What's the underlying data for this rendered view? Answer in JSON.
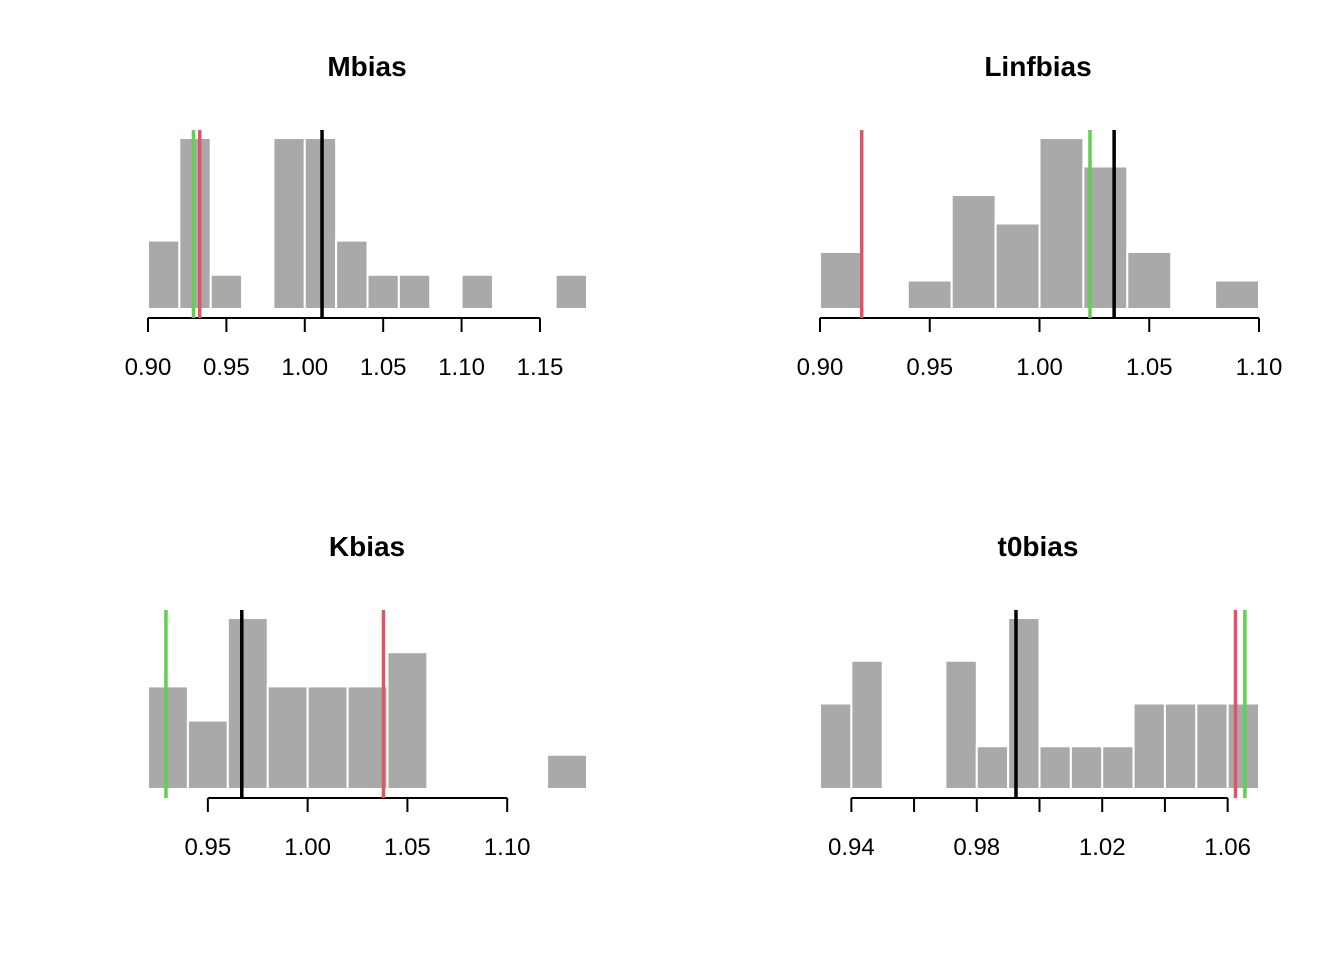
{
  "colors": {
    "bar": "#a9a9a9",
    "black_line": "#000000",
    "red_line": "#df536b",
    "green_line": "#61d04f"
  },
  "chart_data": [
    {
      "type": "bar",
      "title": "Mbias",
      "xlim": [
        0.9,
        1.18
      ],
      "ticks": [
        0.9,
        0.95,
        1.0,
        1.05,
        1.1,
        1.15
      ],
      "tick_labels": [
        "0.90",
        "0.95",
        "1.00",
        "1.05",
        "1.10",
        "1.15"
      ],
      "bin_width": 0.02,
      "bins": [
        {
          "start": 0.9,
          "count": 2
        },
        {
          "start": 0.92,
          "count": 5
        },
        {
          "start": 0.94,
          "count": 1
        },
        {
          "start": 0.98,
          "count": 5
        },
        {
          "start": 1.0,
          "count": 5
        },
        {
          "start": 1.02,
          "count": 2
        },
        {
          "start": 1.04,
          "count": 1
        },
        {
          "start": 1.06,
          "count": 1
        },
        {
          "start": 1.1,
          "count": 1
        },
        {
          "start": 1.16,
          "count": 1
        }
      ],
      "ymax": 5,
      "vlines": [
        {
          "color": "green",
          "x": 0.929
        },
        {
          "color": "red",
          "x": 0.933
        },
        {
          "color": "black",
          "x": 1.011
        }
      ]
    },
    {
      "type": "bar",
      "title": "Linfbias",
      "xlim": [
        0.9,
        1.1
      ],
      "ticks": [
        0.9,
        0.95,
        1.0,
        1.05,
        1.1
      ],
      "tick_labels": [
        "0.90",
        "0.95",
        "1.00",
        "1.05",
        "1.10"
      ],
      "bin_width": 0.02,
      "bins": [
        {
          "start": 0.9,
          "count": 2
        },
        {
          "start": 0.94,
          "count": 1
        },
        {
          "start": 0.96,
          "count": 4
        },
        {
          "start": 0.98,
          "count": 3
        },
        {
          "start": 1.0,
          "count": 6
        },
        {
          "start": 1.02,
          "count": 5
        },
        {
          "start": 1.04,
          "count": 2
        },
        {
          "start": 1.08,
          "count": 1
        }
      ],
      "ymax": 6,
      "vlines": [
        {
          "color": "red",
          "x": 0.919
        },
        {
          "color": "green",
          "x": 1.023
        },
        {
          "color": "black",
          "x": 1.034
        }
      ]
    },
    {
      "type": "bar",
      "title": "Kbias",
      "xlim": [
        0.92,
        1.14
      ],
      "ticks": [
        0.95,
        1.0,
        1.05,
        1.1
      ],
      "tick_labels": [
        "0.95",
        "1.00",
        "1.05",
        "1.10"
      ],
      "bin_width": 0.02,
      "bins": [
        {
          "start": 0.92,
          "count": 3
        },
        {
          "start": 0.94,
          "count": 2
        },
        {
          "start": 0.96,
          "count": 5
        },
        {
          "start": 0.98,
          "count": 3
        },
        {
          "start": 1.0,
          "count": 3
        },
        {
          "start": 1.02,
          "count": 3
        },
        {
          "start": 1.04,
          "count": 4
        },
        {
          "start": 1.12,
          "count": 1
        }
      ],
      "ymax": 5,
      "vlines": [
        {
          "color": "green",
          "x": 0.929
        },
        {
          "color": "black",
          "x": 0.967
        },
        {
          "color": "red",
          "x": 1.038
        }
      ]
    },
    {
      "type": "bar",
      "title": "t0bias",
      "xlim": [
        0.93,
        1.07
      ],
      "ticks": [
        0.94,
        0.96,
        0.98,
        1.0,
        1.02,
        1.04,
        1.06
      ],
      "tick_labels": [
        "0.94",
        "",
        "0.98",
        "",
        "1.02",
        "",
        "1.06"
      ],
      "bin_width": 0.01,
      "bins": [
        {
          "start": 0.93,
          "count": 2
        },
        {
          "start": 0.94,
          "count": 3
        },
        {
          "start": 0.97,
          "count": 3
        },
        {
          "start": 0.98,
          "count": 1
        },
        {
          "start": 0.99,
          "count": 4
        },
        {
          "start": 1.0,
          "count": 1
        },
        {
          "start": 1.01,
          "count": 1
        },
        {
          "start": 1.02,
          "count": 1
        },
        {
          "start": 1.03,
          "count": 2
        },
        {
          "start": 1.04,
          "count": 2
        },
        {
          "start": 1.05,
          "count": 2
        },
        {
          "start": 1.06,
          "count": 2
        }
      ],
      "ymax": 4,
      "vlines": [
        {
          "color": "black",
          "x": 0.9925
        },
        {
          "color": "red",
          "x": 1.0625
        },
        {
          "color": "green",
          "x": 1.0655
        }
      ]
    }
  ]
}
